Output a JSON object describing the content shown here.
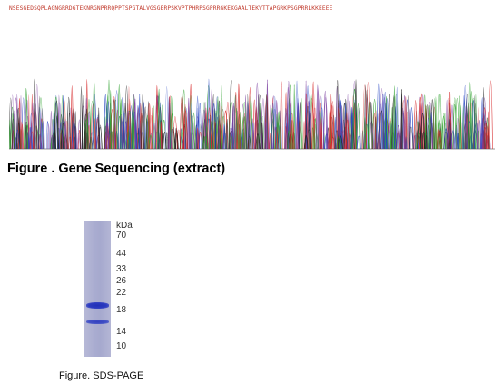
{
  "sequence_text": "NSESGEDSQPLAGNGRRDGTEKNRGNPRRQPPTSPGTALVGSGERPSKVPTPHRPSGPRRGKEKGAALTEKVTTAPGRKPSGPRRLKKEEEE",
  "trace_colors": {
    "A": "#2ca02c",
    "C": "#1f3fbf",
    "G": "#222222",
    "T": "#d62728",
    "purple": "#7b3fa0"
  },
  "caption_sequencing": "Figure . Gene Sequencing (extract)",
  "gel": {
    "unit_label": "kDa",
    "markers": [
      "70",
      "44",
      "33",
      "26",
      "22",
      "18",
      "14",
      "10"
    ],
    "band_color": "#2a38bc",
    "lane_color": "#a9acd0"
  },
  "caption_sds": "Figure. SDS-PAGE"
}
